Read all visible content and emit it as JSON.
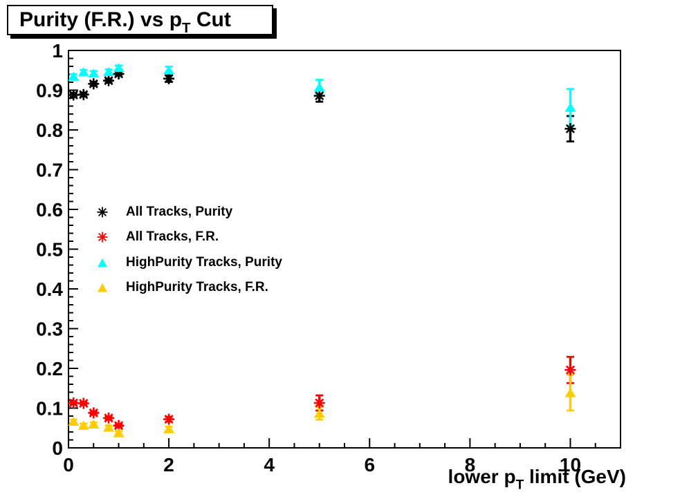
{
  "title": {
    "part1": "Purity (F.R.) vs p",
    "sub": "T",
    "part2": " Cut"
  },
  "xaxis": {
    "title_part1": "lower p",
    "title_sub": "T",
    "title_part2": " limit (GeV)"
  },
  "legend": {
    "items": [
      {
        "label": "All Tracks, Purity"
      },
      {
        "label": "All Tracks, F.R."
      },
      {
        "label": "HighPurity Tracks, Purity"
      },
      {
        "label": "HighPurity Tracks, F.R."
      }
    ]
  },
  "colors": {
    "background": "#ffffff",
    "axis": "#000000",
    "black_series": "#000000",
    "red_series": "#ff0000",
    "cyan_series": "#00ffff",
    "yellow_series": "#ffcc00"
  },
  "chart_data": {
    "type": "scatter",
    "title": "Purity (F.R.) vs p_T Cut",
    "xlabel": "lower p_T limit (GeV)",
    "ylabel": "",
    "xlim": [
      0,
      11
    ],
    "ylim": [
      0,
      1
    ],
    "grid": false,
    "legend_position": "middle-left",
    "x_major_ticks": [
      0,
      2,
      4,
      6,
      8,
      10
    ],
    "x_minor_step": 0.5,
    "y_major_ticks": [
      0,
      0.1,
      0.2,
      0.3,
      0.4,
      0.5,
      0.6,
      0.7,
      0.8,
      0.9,
      1
    ],
    "y_minor_step": 0.02,
    "x": [
      0.1,
      0.3,
      0.5,
      0.8,
      1.0,
      2.0,
      5.0,
      10.0
    ],
    "series": [
      {
        "name": "All Tracks, Purity",
        "marker": "asterisk",
        "color": "#000000",
        "y": [
          0.888,
          0.889,
          0.916,
          0.924,
          0.941,
          0.929,
          0.886,
          0.803
        ],
        "ey": [
          0.005,
          0.005,
          0.005,
          0.005,
          0.005,
          0.008,
          0.015,
          0.032
        ]
      },
      {
        "name": "All Tracks, F.R.",
        "marker": "asterisk",
        "color": "#ff0000",
        "y": [
          0.113,
          0.112,
          0.088,
          0.075,
          0.056,
          0.072,
          0.113,
          0.196
        ],
        "ey": [
          0.004,
          0.004,
          0.004,
          0.004,
          0.004,
          0.006,
          0.019,
          0.033
        ]
      },
      {
        "name": "HighPurity Tracks, Purity",
        "marker": "triangle",
        "color": "#00ffff",
        "y": [
          0.935,
          0.946,
          0.943,
          0.947,
          0.957,
          0.951,
          0.908,
          0.857
        ],
        "ey": [
          0.005,
          0.005,
          0.005,
          0.005,
          0.005,
          0.008,
          0.018,
          0.046
        ]
      },
      {
        "name": "HighPurity Tracks, F.R.",
        "marker": "triangle",
        "color": "#ffcc00",
        "y": [
          0.067,
          0.057,
          0.06,
          0.052,
          0.038,
          0.048,
          0.087,
          0.139
        ],
        "ey": [
          0.004,
          0.004,
          0.004,
          0.004,
          0.004,
          0.005,
          0.016,
          0.045
        ]
      }
    ]
  }
}
